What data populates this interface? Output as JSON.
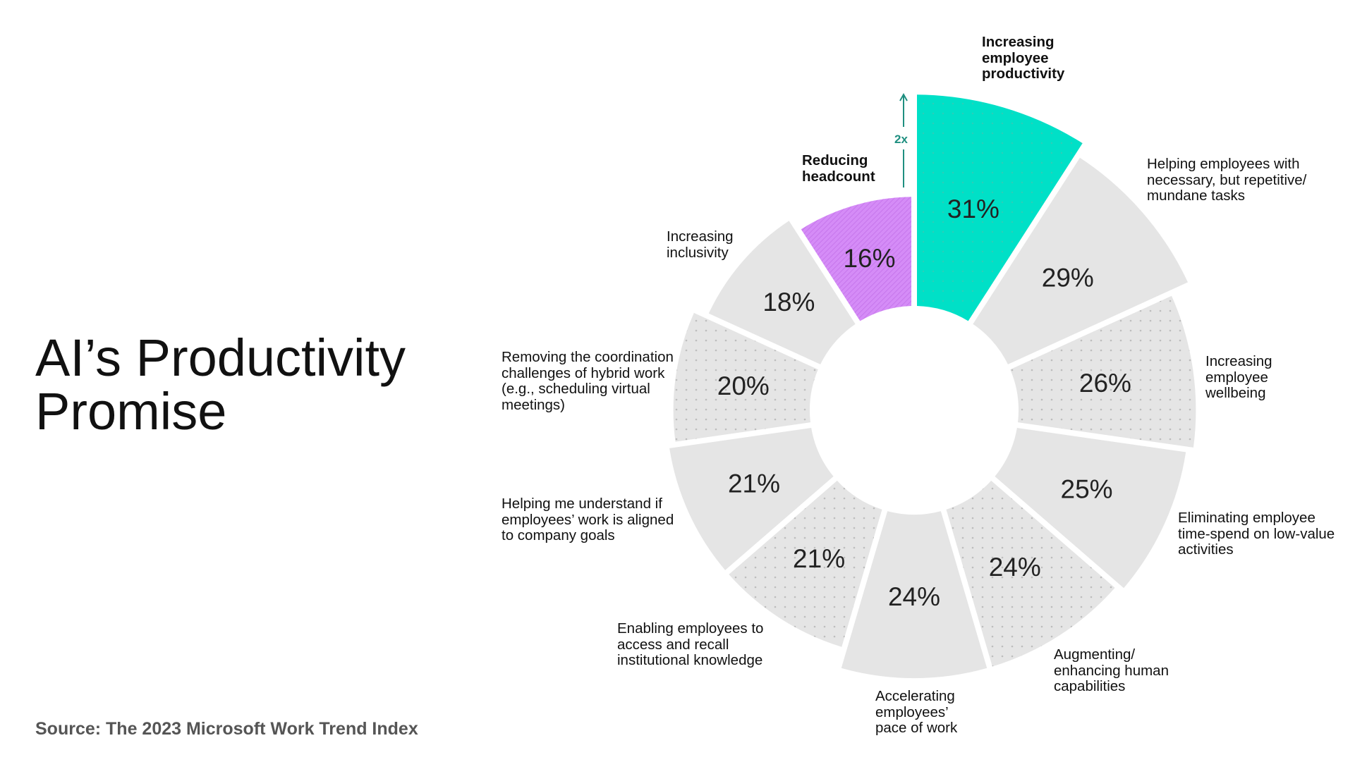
{
  "title": "AI’s Productivity Promise",
  "source": "Source: The 2023 Microsoft Work Trend Index",
  "annotation": {
    "multiplier": "2x",
    "color": "#1f8f80"
  },
  "colors": {
    "highlight": "#00e0c7",
    "accent": "#d58cf7",
    "neutral": "#e5e5e5",
    "dot": "#bdbdbd"
  },
  "chart_data": {
    "type": "radial-bar",
    "categories": [
      "Increasing employee productivity",
      "Helping employees with necessary, but repetitive/ mundane tasks",
      "Increasing employee wellbeing",
      "Eliminating employee time-spend on low-value activities",
      "Augmenting/ enhancing human capabilities",
      "Accelerating employees’ pace of work",
      "Enabling employees to access and recall institutional knowledge",
      "Helping me understand if employees’ work is aligned to company goals",
      "Removing the coordination challenges of hybrid work (e.g., scheduling virtual meetings)",
      "Increasing inclusivity",
      "Reducing headcount"
    ],
    "values": [
      31,
      29,
      26,
      25,
      24,
      24,
      21,
      21,
      20,
      18,
      16
    ],
    "value_labels": [
      "31%",
      "29%",
      "26%",
      "25%",
      "24%",
      "24%",
      "21%",
      "21%",
      "20%",
      "18%",
      "16%"
    ],
    "styles": [
      "highlight-dotted",
      "solid",
      "dotted",
      "solid",
      "dotted",
      "solid",
      "dotted",
      "solid",
      "dotted",
      "solid",
      "accent-hatched"
    ],
    "highlighted": [
      "Increasing employee productivity",
      "Reducing headcount"
    ],
    "order": "clockwise from top",
    "unit": "%"
  },
  "labels": {
    "productivity": "Increasing employee productivity",
    "repetitive": "Helping employees with necessary, but repetitive/ mundane tasks",
    "wellbeing": "Increasing employee wellbeing",
    "low_value": "Eliminating employee time-spend on low-value activities",
    "augmenting": "Augmenting/ enhancing human capabilities",
    "pace": "Accelerating employees’ pace of work",
    "knowledge": "Enabling employees to access and recall institutional knowledge",
    "aligned": "Helping me understand if employees’ work is aligned to company goals",
    "hybrid": "Removing the coordination challenges of hybrid work (e.g., scheduling virtual meetings)",
    "inclusivity": "Increasing inclusivity",
    "headcount": "Reducing headcount"
  }
}
